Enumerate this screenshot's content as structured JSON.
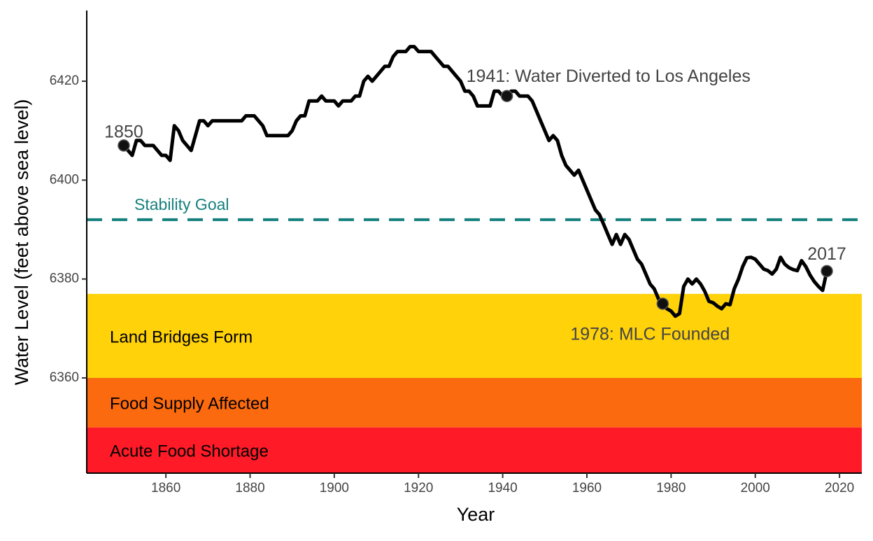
{
  "chart_data": {
    "type": "line",
    "x_label": "Year",
    "y_label": "Water Level (feet above sea level)",
    "xlim": [
      1841.2,
      2025.3
    ],
    "ylim": [
      6340.75,
      6434.3
    ],
    "xticks": [
      1860,
      1880,
      1900,
      1920,
      1940,
      1960,
      1980,
      2000,
      2020
    ],
    "yticks": [
      6360,
      6380,
      6400,
      6420
    ],
    "grid": false,
    "bands": [
      {
        "label": "Acute Food Shortage",
        "from": 6340.75,
        "to": 6350,
        "color": "#ff1a27"
      },
      {
        "label": "Food Supply Affected",
        "from": 6350,
        "to": 6360,
        "color": "#fb6a0e"
      },
      {
        "label": "Land Bridges Form",
        "from": 6360,
        "to": 6377,
        "color": "#ffd20a"
      }
    ],
    "reference_line": {
      "label": "Stability Goal",
      "value": 6392,
      "color": "#16807d"
    },
    "series": [
      {
        "name": "Water Level",
        "color": "#000000",
        "x": [
          1850,
          1851,
          1852,
          1853,
          1854,
          1855,
          1856,
          1857,
          1858,
          1859,
          1860,
          1861,
          1862,
          1863,
          1864,
          1865,
          1866,
          1867,
          1868,
          1869,
          1870,
          1871,
          1872,
          1873,
          1874,
          1875,
          1876,
          1877,
          1878,
          1879,
          1880,
          1881,
          1882,
          1883,
          1884,
          1885,
          1886,
          1887,
          1888,
          1889,
          1890,
          1891,
          1892,
          1893,
          1894,
          1895,
          1896,
          1897,
          1898,
          1899,
          1900,
          1901,
          1902,
          1903,
          1904,
          1905,
          1906,
          1907,
          1908,
          1909,
          1910,
          1911,
          1912,
          1913,
          1914,
          1915,
          1916,
          1917,
          1918,
          1919,
          1920,
          1921,
          1922,
          1923,
          1924,
          1925,
          1926,
          1927,
          1928,
          1929,
          1930,
          1931,
          1932,
          1933,
          1934,
          1935,
          1936,
          1937,
          1938,
          1939,
          1940,
          1941,
          1942,
          1943,
          1944,
          1945,
          1946,
          1947,
          1948,
          1949,
          1950,
          1951,
          1952,
          1953,
          1954,
          1955,
          1956,
          1957,
          1958,
          1959,
          1960,
          1961,
          1962,
          1963,
          1964,
          1965,
          1966,
          1967,
          1968,
          1969,
          1970,
          1971,
          1972,
          1973,
          1974,
          1975,
          1976,
          1977,
          1978,
          1979,
          1980,
          1981,
          1982,
          1983,
          1984,
          1985,
          1986,
          1987,
          1988,
          1989,
          1990,
          1991,
          1992,
          1993,
          1994,
          1995,
          1996,
          1997,
          1998,
          1999,
          2000,
          2001,
          2002,
          2003,
          2004,
          2005,
          2006,
          2007,
          2008,
          2009,
          2010,
          2011,
          2012,
          2013,
          2014,
          2015,
          2016,
          2017
        ],
        "values": [
          6407,
          6406,
          6405,
          6408,
          6408,
          6407,
          6407,
          6407,
          6406,
          6405,
          6405,
          6404,
          6411,
          6410,
          6408,
          6407,
          6406,
          6409,
          6412,
          6412,
          6411,
          6412,
          6412,
          6412,
          6412,
          6412,
          6412,
          6412,
          6412,
          6413,
          6413,
          6413,
          6412,
          6411,
          6409,
          6409,
          6409,
          6409,
          6409,
          6409,
          6410,
          6412,
          6413,
          6413,
          6416,
          6416,
          6416,
          6417,
          6416,
          6416,
          6416,
          6415,
          6416,
          6416,
          6416,
          6417,
          6417,
          6420,
          6421,
          6420,
          6421,
          6422,
          6423,
          6423,
          6425,
          6426,
          6426,
          6426,
          6427,
          6427,
          6426,
          6426,
          6426,
          6426,
          6425,
          6424,
          6423,
          6423,
          6422,
          6421,
          6420,
          6418,
          6418,
          6417,
          6415,
          6415,
          6415,
          6415,
          6418,
          6418,
          6417,
          6417,
          6418,
          6418,
          6417,
          6417,
          6417,
          6416,
          6414,
          6412,
          6410,
          6408,
          6409,
          6408,
          6405,
          6403,
          6402,
          6401,
          6402,
          6400,
          6398,
          6396,
          6394,
          6393,
          6391,
          6389,
          6387,
          6389,
          6387,
          6389,
          6388,
          6386,
          6384,
          6383,
          6381,
          6379,
          6378,
          6376,
          6375,
          6374,
          6373.5,
          6372.5,
          6373,
          6378.5,
          6380,
          6379,
          6380,
          6379,
          6377.5,
          6375.5,
          6375.2,
          6374.5,
          6374,
          6375,
          6374.8,
          6378,
          6380,
          6382.5,
          6384.3,
          6384.4,
          6384,
          6383,
          6382,
          6381.7,
          6381,
          6382,
          6384.4,
          6383,
          6382.3,
          6381.9,
          6381.7,
          6383.7,
          6382.5,
          6380.8,
          6379.5,
          6378.5,
          6377.7,
          6381.6
        ]
      }
    ],
    "annotations": [
      {
        "label": "1850",
        "x": 1850,
        "y": 6407
      },
      {
        "label": "1941: Water Diverted to Los Angeles",
        "x": 1941,
        "y": 6417
      },
      {
        "label": "1978: MLC Founded",
        "x": 1978,
        "y": 6375
      },
      {
        "label": "2017",
        "x": 2017,
        "y": 6381.6
      }
    ]
  }
}
